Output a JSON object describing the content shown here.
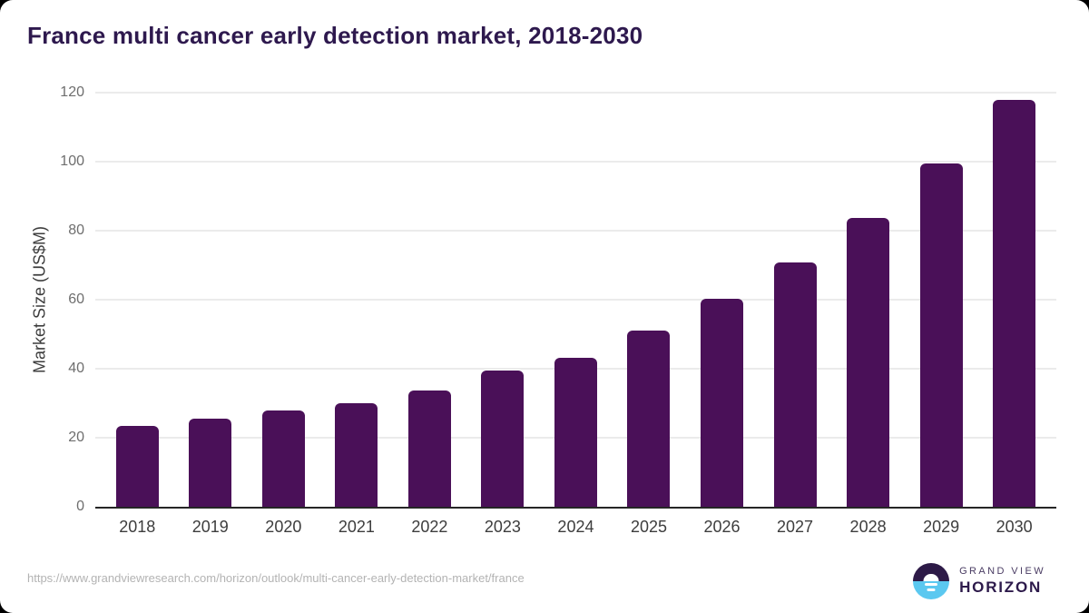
{
  "chart_data": {
    "type": "bar",
    "title": "France multi cancer early detection market, 2018-2030",
    "categories": [
      "2018",
      "2019",
      "2020",
      "2021",
      "2022",
      "2023",
      "2024",
      "2025",
      "2026",
      "2027",
      "2028",
      "2029",
      "2030"
    ],
    "values": [
      23.4,
      25.5,
      27.9,
      30.0,
      33.8,
      39.5,
      43.2,
      51.1,
      60.3,
      70.8,
      83.7,
      99.5,
      117.8
    ],
    "xlabel": "",
    "ylabel": "Market Size (US$M)",
    "ylim": [
      0,
      120
    ],
    "yticks": [
      0,
      20,
      40,
      60,
      80,
      100,
      120
    ],
    "grid": "horizontal",
    "legend": "none",
    "bar_color": "#4a1058"
  },
  "footer": {
    "source_url": "https://www.grandviewresearch.com/horizon/outlook/multi-cancer-early-detection-market/france",
    "logo": {
      "top": "GRAND VIEW",
      "bottom": "HORIZON"
    }
  },
  "colors": {
    "bar": "#4a1058",
    "title_text": "#2e194e",
    "logo_purple": "#2d1a4b",
    "logo_blue": "#5bc8f0",
    "gridline": "#ebebeb",
    "axis_line": "#262626"
  }
}
